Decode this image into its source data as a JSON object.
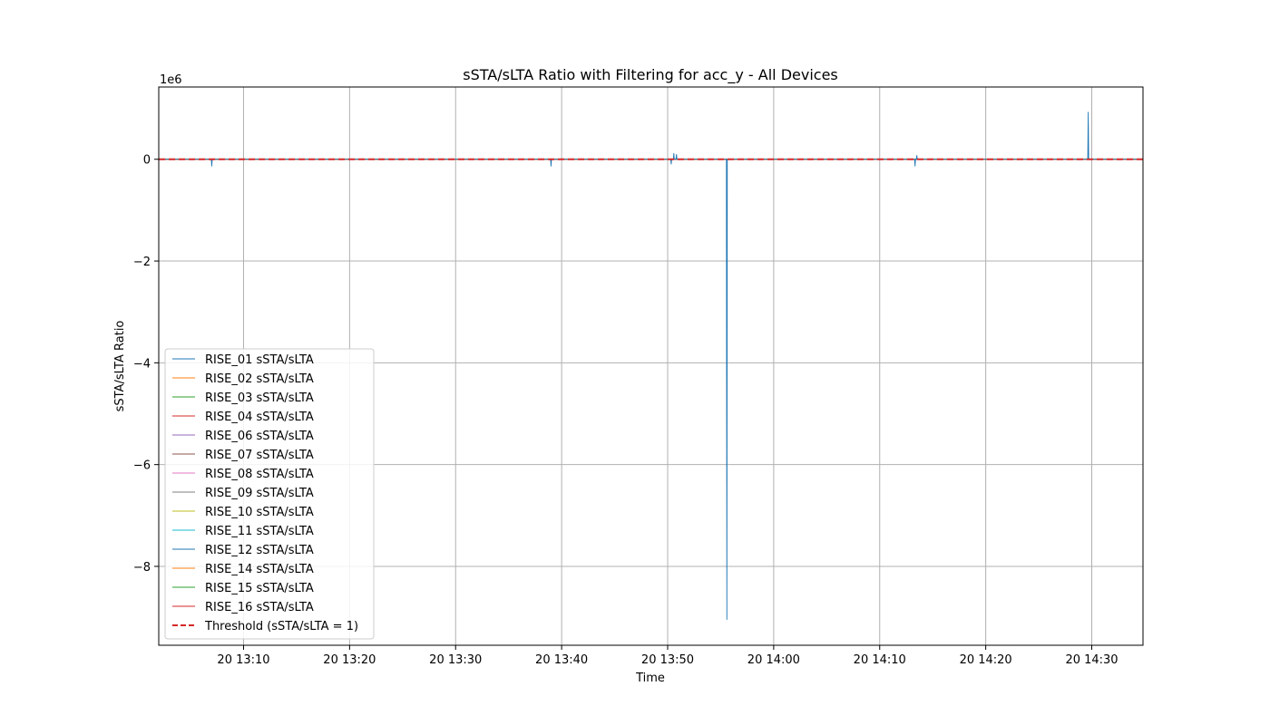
{
  "chart_data": {
    "type": "line",
    "title": "sSTA/sLTA Ratio with Filtering for acc_y - All Devices",
    "xlabel": "Time",
    "ylabel": "sSTA/sLTA Ratio",
    "y_multiplier_label": "1e6",
    "xlim": [
      "13:02:00",
      "14:34:50"
    ],
    "ylim": [
      -9.55,
      1.42
    ],
    "yticks": [
      -8,
      -6,
      -4,
      -2,
      0
    ],
    "ytick_labels": [
      "−8",
      "−6",
      "−4",
      "−2",
      "0"
    ],
    "xticks": [
      "13:10",
      "13:20",
      "13:30",
      "13:40",
      "13:50",
      "14:00",
      "14:10",
      "14:20",
      "14:30"
    ],
    "xtick_labels": [
      "20 13:10",
      "20 13:20",
      "20 13:30",
      "20 13:40",
      "20 13:50",
      "20 14:00",
      "20 14:10",
      "20 14:20",
      "20 14:30"
    ],
    "grid": true,
    "legend_position": "lower-left",
    "threshold": {
      "label": "Threshold (sSTA/sLTA = 1)",
      "value": 1,
      "color": "#d62728",
      "style": "dashed"
    },
    "series": [
      {
        "name": "RISE_01 sSTA/sLTA",
        "color": "#1f77b4",
        "spikes": [
          {
            "t": "13:07:00",
            "v": -0.14
          },
          {
            "t": "13:39:00",
            "v": -0.14
          },
          {
            "t": "13:50:20",
            "v": -0.1
          },
          {
            "t": "13:50:35",
            "v": 0.12
          },
          {
            "t": "13:50:50",
            "v": 0.1
          },
          {
            "t": "13:55:35",
            "v": -9.05
          },
          {
            "t": "14:13:20",
            "v": -0.14
          },
          {
            "t": "14:13:30",
            "v": 0.08
          },
          {
            "t": "14:29:40",
            "v": 0.93
          }
        ]
      },
      {
        "name": "RISE_02 sSTA/sLTA",
        "color": "#ff7f0e",
        "spikes": []
      },
      {
        "name": "RISE_03 sSTA/sLTA",
        "color": "#2ca02c",
        "spikes": []
      },
      {
        "name": "RISE_04 sSTA/sLTA",
        "color": "#d62728",
        "spikes": []
      },
      {
        "name": "RISE_06 sSTA/sLTA",
        "color": "#9467bd",
        "spikes": []
      },
      {
        "name": "RISE_07 sSTA/sLTA",
        "color": "#8c564b",
        "spikes": []
      },
      {
        "name": "RISE_08 sSTA/sLTA",
        "color": "#e377c2",
        "spikes": []
      },
      {
        "name": "RISE_09 sSTA/sLTA",
        "color": "#7f7f7f",
        "spikes": []
      },
      {
        "name": "RISE_10 sSTA/sLTA",
        "color": "#bcbd22",
        "spikes": []
      },
      {
        "name": "RISE_11 sSTA/sLTA",
        "color": "#17becf",
        "spikes": []
      },
      {
        "name": "RISE_12 sSTA/sLTA",
        "color": "#1f77b4",
        "spikes": []
      },
      {
        "name": "RISE_14 sSTA/sLTA",
        "color": "#ff7f0e",
        "spikes": []
      },
      {
        "name": "RISE_15 sSTA/sLTA",
        "color": "#2ca02c",
        "spikes": []
      },
      {
        "name": "RISE_16 sSTA/sLTA",
        "color": "#d62728",
        "spikes": []
      }
    ]
  }
}
